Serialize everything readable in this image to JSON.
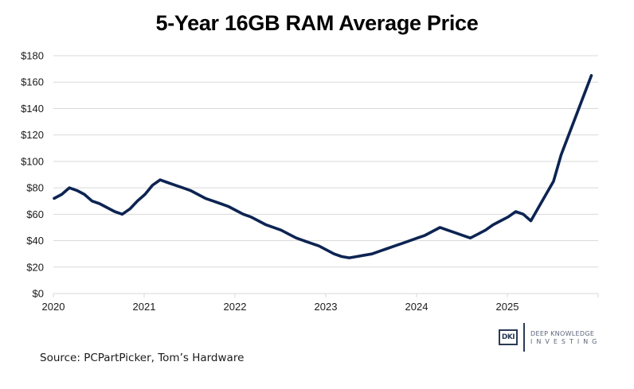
{
  "chart_data": {
    "type": "line",
    "title": "5-Year 16GB RAM Average Price",
    "xlabel": "",
    "ylabel": "",
    "ylim": [
      0,
      180
    ],
    "xlim": [
      "2020-01",
      "2025-12"
    ],
    "grid": true,
    "legend": "none",
    "y_ticks": [
      "$0",
      "$20",
      "$40",
      "$60",
      "$80",
      "$100",
      "$120",
      "$140",
      "$160",
      "$180"
    ],
    "y_tick_values": [
      0,
      20,
      40,
      60,
      80,
      100,
      120,
      140,
      160,
      180
    ],
    "x_ticks": [
      "2020",
      "2021",
      "2022",
      "2023",
      "2024",
      "2025"
    ],
    "series": [
      {
        "name": "16GB RAM Average Price",
        "color": "#0d2452",
        "x_start": "2020-01",
        "frequency": "monthly",
        "values": [
          72,
          75,
          80,
          78,
          75,
          70,
          68,
          65,
          62,
          60,
          64,
          70,
          75,
          82,
          86,
          84,
          82,
          80,
          78,
          75,
          72,
          70,
          68,
          66,
          63,
          60,
          58,
          55,
          52,
          50,
          48,
          45,
          42,
          40,
          38,
          36,
          33,
          30,
          28,
          27,
          28,
          29,
          30,
          32,
          34,
          36,
          38,
          40,
          42,
          44,
          47,
          50,
          48,
          46,
          44,
          42,
          45,
          48,
          52,
          55,
          58,
          62,
          60,
          55,
          65,
          75,
          85,
          105,
          120,
          135,
          150,
          165
        ]
      }
    ]
  },
  "source": "Source: PCPartPicker, Tom’s Hardware",
  "logo": {
    "mark": "DKI",
    "line1": "DEEP KNOWLEDGE",
    "line2": "INVESTING"
  },
  "colors": {
    "line": "#0d2452",
    "grid": "#d9d9d9",
    "axis": "#d9d9d9"
  }
}
